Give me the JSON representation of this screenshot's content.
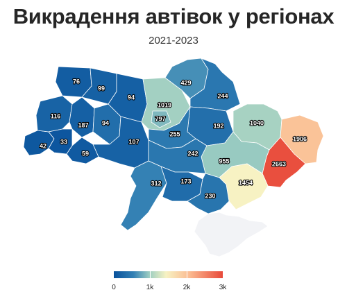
{
  "title": "Викрадення автівок у регіонах",
  "subtitle": "2021-2023",
  "legend": {
    "min": 0,
    "max": 3000,
    "ticks": [
      "0",
      "1k",
      "2k",
      "3k"
    ]
  },
  "colors": {
    "low": "#08519c",
    "mid": "#f7f2c3",
    "high": "#e8493a",
    "no_data": "#f2f3f6"
  },
  "regions": [
    {
      "id": "zakarpattia",
      "value": 42
    },
    {
      "id": "lviv",
      "value": 116
    },
    {
      "id": "volyn",
      "value": 76
    },
    {
      "id": "rivne",
      "value": 99
    },
    {
      "id": "zhytomyr",
      "value": 94
    },
    {
      "id": "ternopil",
      "value": 94
    },
    {
      "id": "ivano-frankivsk",
      "value": 33
    },
    {
      "id": "khmelnytskyi",
      "value": 187
    },
    {
      "id": "chernivtsi",
      "value": 59
    },
    {
      "id": "vinnytsia",
      "value": 107
    },
    {
      "id": "kyiv-oblast",
      "value": 1019
    },
    {
      "id": "kyiv-city",
      "value": 797
    },
    {
      "id": "chernihiv",
      "value": 429
    },
    {
      "id": "sumy",
      "value": 244
    },
    {
      "id": "poltava",
      "value": 192
    },
    {
      "id": "cherkasy",
      "value": 255
    },
    {
      "id": "kharkiv",
      "value": 1040
    },
    {
      "id": "luhansk",
      "value": 1906
    },
    {
      "id": "donetsk",
      "value": 2663
    },
    {
      "id": "dnipropetrovsk",
      "value": 955
    },
    {
      "id": "zaporizhzhia",
      "value": 1454
    },
    {
      "id": "kirovohrad",
      "value": 242
    },
    {
      "id": "odesa",
      "value": 312
    },
    {
      "id": "mykolaiv",
      "value": 173
    },
    {
      "id": "kherson",
      "value": 230
    }
  ]
}
